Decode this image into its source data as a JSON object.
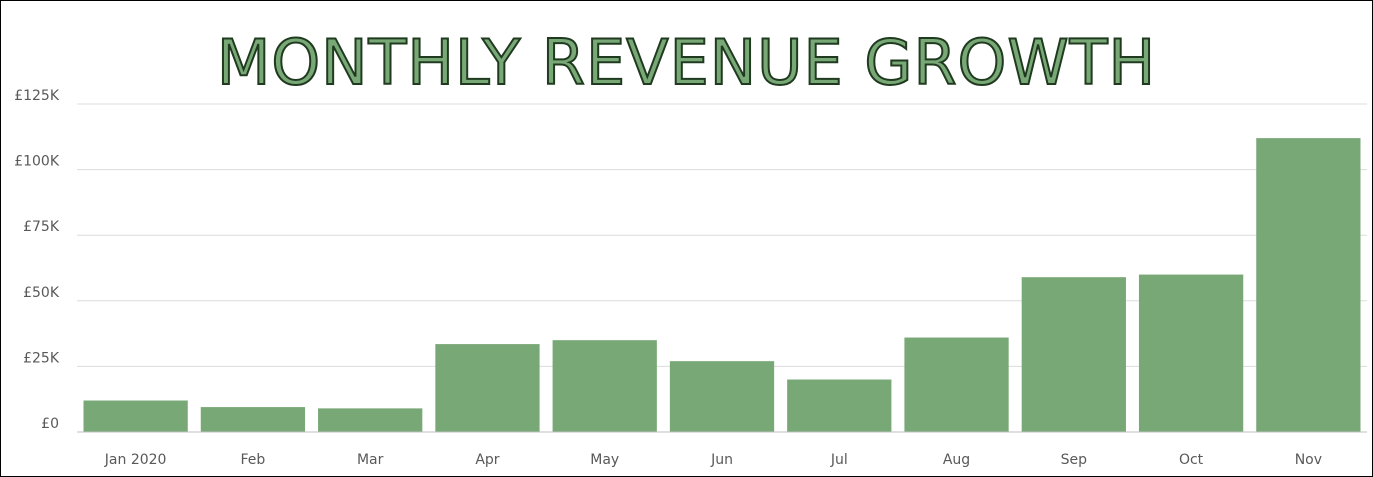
{
  "chart_data": {
    "type": "bar",
    "title": "MONTHLY REVENUE GROWTH",
    "xlabel": "",
    "ylabel": "",
    "categories": [
      "Jan 2020",
      "Feb",
      "Mar",
      "Apr",
      "May",
      "Jun",
      "Jul",
      "Aug",
      "Sep",
      "Oct",
      "Nov"
    ],
    "values": [
      12000,
      9500,
      9000,
      33500,
      35000,
      27000,
      20000,
      36000,
      59000,
      60000,
      112000
    ],
    "ylim": [
      0,
      125000
    ],
    "yticks": [
      0,
      25000,
      50000,
      75000,
      100000,
      125000
    ],
    "ytick_labels": [
      "£0",
      "£25K",
      "£50K",
      "£75K",
      "£100K",
      "£125K"
    ],
    "grid": true,
    "legend": "none",
    "colors": {
      "bar": "#79a877",
      "title_fill": "#79a877",
      "title_stroke": "#1f3a1f",
      "gridline": "#dcdcdc",
      "tick_label": "#595959"
    }
  }
}
